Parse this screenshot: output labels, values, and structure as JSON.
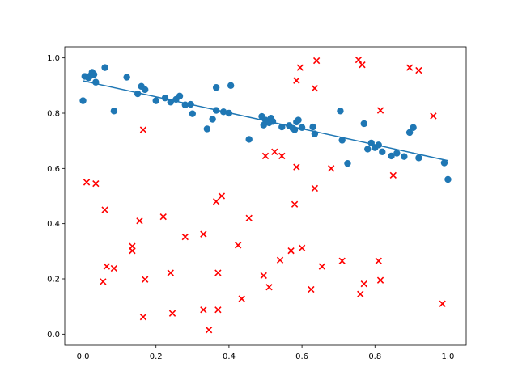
{
  "chart_data": {
    "type": "scatter",
    "title": "",
    "xlabel": "",
    "ylabel": "",
    "xlim": [
      -0.05,
      1.05
    ],
    "ylim": [
      -0.04,
      1.04
    ],
    "grid": false,
    "x_ticks": [
      0.0,
      0.2,
      0.4,
      0.6,
      0.8,
      1.0
    ],
    "y_ticks": [
      0.0,
      0.2,
      0.4,
      0.6,
      0.8,
      1.0
    ],
    "x_tick_labels": [
      "0.0",
      "0.2",
      "0.4",
      "0.6",
      "0.8",
      "1.0"
    ],
    "y_tick_labels": [
      "0.0",
      "0.2",
      "0.4",
      "0.6",
      "0.8",
      "1.0"
    ],
    "colors": {
      "series_a": "#1f77b4",
      "series_b": "#ff0000",
      "fit": "#1f77b4"
    },
    "series": [
      {
        "marker": "circle",
        "color": "#1f77b4",
        "points": [
          [
            0.0,
            0.845
          ],
          [
            0.005,
            0.933
          ],
          [
            0.015,
            0.928
          ],
          [
            0.02,
            0.935
          ],
          [
            0.025,
            0.948
          ],
          [
            0.03,
            0.94
          ],
          [
            0.035,
            0.912
          ],
          [
            0.06,
            0.965
          ],
          [
            0.085,
            0.808
          ],
          [
            0.12,
            0.93
          ],
          [
            0.15,
            0.87
          ],
          [
            0.16,
            0.897
          ],
          [
            0.17,
            0.885
          ],
          [
            0.2,
            0.845
          ],
          [
            0.225,
            0.855
          ],
          [
            0.24,
            0.84
          ],
          [
            0.255,
            0.85
          ],
          [
            0.265,
            0.862
          ],
          [
            0.28,
            0.83
          ],
          [
            0.295,
            0.832
          ],
          [
            0.3,
            0.798
          ],
          [
            0.34,
            0.743
          ],
          [
            0.355,
            0.778
          ],
          [
            0.365,
            0.893
          ],
          [
            0.365,
            0.81
          ],
          [
            0.385,
            0.805
          ],
          [
            0.4,
            0.8
          ],
          [
            0.405,
            0.9
          ],
          [
            0.455,
            0.705
          ],
          [
            0.49,
            0.788
          ],
          [
            0.495,
            0.757
          ],
          [
            0.5,
            0.775
          ],
          [
            0.51,
            0.765
          ],
          [
            0.515,
            0.782
          ],
          [
            0.52,
            0.77
          ],
          [
            0.545,
            0.75
          ],
          [
            0.565,
            0.755
          ],
          [
            0.575,
            0.745
          ],
          [
            0.58,
            0.74
          ],
          [
            0.585,
            0.768
          ],
          [
            0.59,
            0.775
          ],
          [
            0.6,
            0.748
          ],
          [
            0.63,
            0.75
          ],
          [
            0.635,
            0.725
          ],
          [
            0.705,
            0.808
          ],
          [
            0.71,
            0.702
          ],
          [
            0.725,
            0.618
          ],
          [
            0.77,
            0.762
          ],
          [
            0.78,
            0.67
          ],
          [
            0.79,
            0.692
          ],
          [
            0.8,
            0.675
          ],
          [
            0.81,
            0.685
          ],
          [
            0.82,
            0.66
          ],
          [
            0.845,
            0.645
          ],
          [
            0.86,
            0.655
          ],
          [
            0.88,
            0.643
          ],
          [
            0.895,
            0.73
          ],
          [
            0.905,
            0.748
          ],
          [
            0.92,
            0.638
          ],
          [
            0.99,
            0.62
          ],
          [
            1.0,
            0.56
          ]
        ]
      },
      {
        "marker": "x",
        "color": "#ff0000",
        "points": [
          [
            0.01,
            0.55
          ],
          [
            0.035,
            0.545
          ],
          [
            0.055,
            0.19
          ],
          [
            0.06,
            0.45
          ],
          [
            0.065,
            0.245
          ],
          [
            0.085,
            0.238
          ],
          [
            0.135,
            0.318
          ],
          [
            0.135,
            0.302
          ],
          [
            0.155,
            0.41
          ],
          [
            0.165,
            0.74
          ],
          [
            0.165,
            0.062
          ],
          [
            0.17,
            0.198
          ],
          [
            0.22,
            0.425
          ],
          [
            0.24,
            0.222
          ],
          [
            0.245,
            0.075
          ],
          [
            0.28,
            0.352
          ],
          [
            0.33,
            0.362
          ],
          [
            0.33,
            0.088
          ],
          [
            0.345,
            0.015
          ],
          [
            0.365,
            0.48
          ],
          [
            0.37,
            0.222
          ],
          [
            0.37,
            0.088
          ],
          [
            0.38,
            0.5
          ],
          [
            0.425,
            0.322
          ],
          [
            0.435,
            0.128
          ],
          [
            0.455,
            0.42
          ],
          [
            0.495,
            0.212
          ],
          [
            0.5,
            0.645
          ],
          [
            0.51,
            0.17
          ],
          [
            0.525,
            0.66
          ],
          [
            0.54,
            0.268
          ],
          [
            0.545,
            0.645
          ],
          [
            0.57,
            0.302
          ],
          [
            0.58,
            0.47
          ],
          [
            0.585,
            0.605
          ],
          [
            0.585,
            0.918
          ],
          [
            0.595,
            0.965
          ],
          [
            0.6,
            0.312
          ],
          [
            0.625,
            0.162
          ],
          [
            0.635,
            0.528
          ],
          [
            0.635,
            0.89
          ],
          [
            0.64,
            0.99
          ],
          [
            0.655,
            0.245
          ],
          [
            0.68,
            0.6
          ],
          [
            0.71,
            0.265
          ],
          [
            0.755,
            0.993
          ],
          [
            0.76,
            0.145
          ],
          [
            0.765,
            0.975
          ],
          [
            0.77,
            0.182
          ],
          [
            0.81,
            0.265
          ],
          [
            0.815,
            0.195
          ],
          [
            0.815,
            0.81
          ],
          [
            0.85,
            0.575
          ],
          [
            0.895,
            0.965
          ],
          [
            0.92,
            0.955
          ],
          [
            0.96,
            0.79
          ],
          [
            0.985,
            0.11
          ]
        ]
      }
    ],
    "fit_line": {
      "x": [
        0.0,
        1.0
      ],
      "y": [
        0.917,
        0.628
      ]
    }
  }
}
